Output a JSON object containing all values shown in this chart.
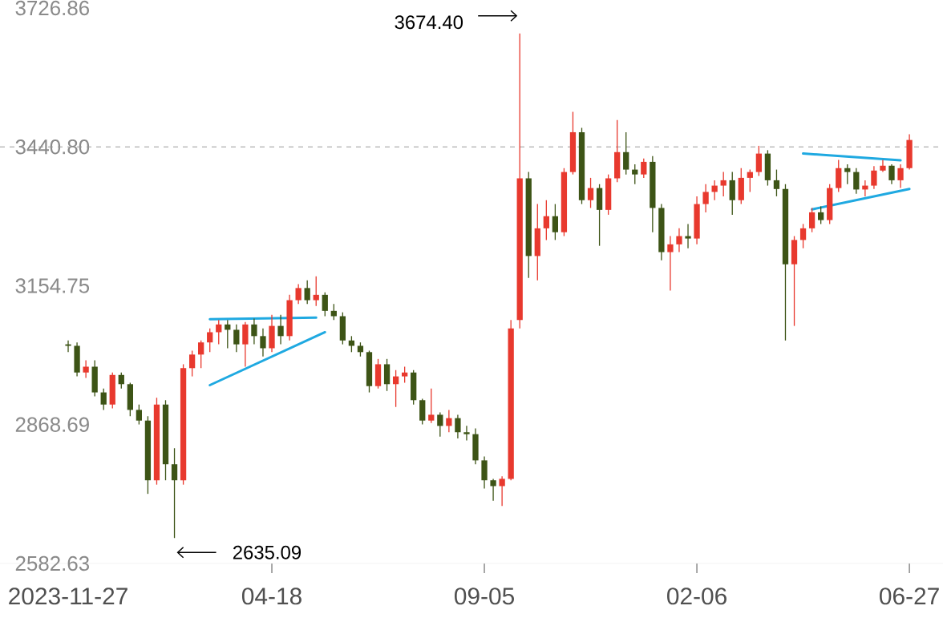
{
  "chart_data": {
    "type": "candlestick",
    "categories": [
      "2023-11-27",
      null,
      null,
      null,
      null,
      null,
      null,
      null,
      null,
      null,
      null,
      null,
      null,
      null,
      null,
      null,
      null,
      null,
      null,
      null,
      null,
      null,
      null,
      "04-18",
      null,
      null,
      null,
      null,
      null,
      null,
      null,
      null,
      null,
      null,
      null,
      null,
      null,
      null,
      null,
      null,
      null,
      null,
      null,
      null,
      null,
      null,
      null,
      "09-05",
      null,
      null,
      null,
      null,
      null,
      null,
      null,
      null,
      null,
      null,
      null,
      null,
      null,
      null,
      null,
      null,
      null,
      null,
      null,
      null,
      null,
      null,
      null,
      "02-06",
      null,
      null,
      null,
      null,
      null,
      null,
      null,
      null,
      null,
      null,
      null,
      null,
      null,
      null,
      null,
      null,
      null,
      null,
      null,
      null,
      null,
      null,
      null,
      "06-27"
    ],
    "ohlc": [
      [
        3034,
        3042,
        3018,
        3031
      ],
      [
        3031,
        3038,
        2968,
        2976
      ],
      [
        2976,
        3001,
        2965,
        2988
      ],
      [
        2988,
        3001,
        2927,
        2935
      ],
      [
        2935,
        2943,
        2899,
        2910
      ],
      [
        2910,
        2976,
        2902,
        2971
      ],
      [
        2971,
        2976,
        2943,
        2952
      ],
      [
        2952,
        2955,
        2886,
        2899
      ],
      [
        2899,
        2910,
        2869,
        2877
      ],
      [
        2877,
        2886,
        2726,
        2754
      ],
      [
        2754,
        2924,
        2745,
        2910
      ],
      [
        2910,
        2919,
        2754,
        2787
      ],
      [
        2787,
        2820,
        2635.09,
        2754
      ],
      [
        2754,
        2993,
        2745,
        2985
      ],
      [
        2985,
        3021,
        2968,
        3013
      ],
      [
        3013,
        3042,
        2985,
        3038
      ],
      [
        3038,
        3067,
        3018,
        3059
      ],
      [
        3059,
        3084,
        3034,
        3075
      ],
      [
        3075,
        3084,
        3026,
        3064
      ],
      [
        3064,
        3075,
        3018,
        3034
      ],
      [
        3034,
        3080,
        2988,
        3075
      ],
      [
        3075,
        3087,
        3034,
        3051
      ],
      [
        3051,
        3067,
        3009,
        3026
      ],
      [
        3026,
        3095,
        3018,
        3072
      ],
      [
        3072,
        3095,
        3034,
        3051
      ],
      [
        3051,
        3136,
        3042,
        3125
      ],
      [
        3125,
        3158,
        3117,
        3150
      ],
      [
        3150,
        3166,
        3117,
        3125
      ],
      [
        3125,
        3174,
        3113,
        3136
      ],
      [
        3136,
        3141,
        3092,
        3103
      ],
      [
        3103,
        3117,
        3084,
        3092
      ],
      [
        3092,
        3100,
        3034,
        3042
      ],
      [
        3042,
        3051,
        3018,
        3031
      ],
      [
        3031,
        3038,
        3009,
        3018
      ],
      [
        3018,
        3021,
        2935,
        2948
      ],
      [
        2948,
        3004,
        2943,
        2993
      ],
      [
        2993,
        3004,
        2938,
        2952
      ],
      [
        2952,
        2981,
        2905,
        2968
      ],
      [
        2968,
        2988,
        2955,
        2976
      ],
      [
        2976,
        2981,
        2910,
        2919
      ],
      [
        2919,
        2922,
        2869,
        2877
      ],
      [
        2877,
        2943,
        2872,
        2889
      ],
      [
        2889,
        2894,
        2844,
        2866
      ],
      [
        2866,
        2899,
        2853,
        2882
      ],
      [
        2882,
        2889,
        2840,
        2853
      ],
      [
        2853,
        2866,
        2836,
        2849
      ],
      [
        2849,
        2861,
        2787,
        2795
      ],
      [
        2795,
        2803,
        2737,
        2754
      ],
      [
        2754,
        2757,
        2712,
        2742
      ],
      [
        2742,
        2762,
        2701,
        2757
      ],
      [
        2757,
        3084,
        2754,
        3067
      ],
      [
        3084,
        3674.4,
        3067,
        3376
      ],
      [
        3376,
        3389,
        3171,
        3216
      ],
      [
        3216,
        3323,
        3166,
        3273
      ],
      [
        3273,
        3331,
        3249,
        3298
      ],
      [
        3298,
        3323,
        3249,
        3265
      ],
      [
        3265,
        3397,
        3257,
        3389
      ],
      [
        3389,
        3513,
        3384,
        3471
      ],
      [
        3471,
        3480,
        3323,
        3331
      ],
      [
        3331,
        3377,
        3315,
        3356
      ],
      [
        3356,
        3364,
        3237,
        3311
      ],
      [
        3311,
        3384,
        3301,
        3376
      ],
      [
        3376,
        3496,
        3368,
        3430
      ],
      [
        3430,
        3471,
        3384,
        3394
      ],
      [
        3394,
        3405,
        3364,
        3384
      ],
      [
        3384,
        3417,
        3377,
        3410
      ],
      [
        3410,
        3422,
        3265,
        3315
      ],
      [
        3315,
        3323,
        3207,
        3224
      ],
      [
        3224,
        3257,
        3145,
        3240
      ],
      [
        3240,
        3273,
        3224,
        3257
      ],
      [
        3257,
        3282,
        3232,
        3252
      ],
      [
        3252,
        3339,
        3240,
        3323
      ],
      [
        3323,
        3364,
        3306,
        3348
      ],
      [
        3348,
        3372,
        3331,
        3361
      ],
      [
        3361,
        3389,
        3339,
        3372
      ],
      [
        3372,
        3389,
        3301,
        3331
      ],
      [
        3331,
        3397,
        3323,
        3377
      ],
      [
        3377,
        3394,
        3348,
        3389
      ],
      [
        3389,
        3443,
        3381,
        3427
      ],
      [
        3427,
        3434,
        3361,
        3372
      ],
      [
        3372,
        3394,
        3339,
        3354
      ],
      [
        3354,
        3364,
        3042,
        3199
      ],
      [
        3199,
        3257,
        3072,
        3249
      ],
      [
        3249,
        3282,
        3232,
        3273
      ],
      [
        3273,
        3315,
        3265,
        3306
      ],
      [
        3306,
        3318,
        3282,
        3290
      ],
      [
        3290,
        3364,
        3282,
        3356
      ],
      [
        3356,
        3414,
        3348,
        3397
      ],
      [
        3397,
        3405,
        3364,
        3389
      ],
      [
        3389,
        3397,
        3344,
        3353
      ],
      [
        3353,
        3372,
        3339,
        3361
      ],
      [
        3361,
        3401,
        3354,
        3392
      ],
      [
        3392,
        3414,
        3389,
        3402
      ],
      [
        3402,
        3405,
        3364,
        3372
      ],
      [
        3372,
        3405,
        3356,
        3397
      ],
      [
        3397,
        3467,
        3394,
        3455
      ]
    ],
    "colors": [
      "#3d5416",
      "#3d5416",
      "#e8392e",
      "#3d5416",
      "#3d5416",
      "#e8392e",
      "#3d5416",
      "#3d5416",
      "#3d5416",
      "#3d5416",
      "#e8392e",
      "#3d5416",
      "#3d5416",
      "#e8392e",
      "#e8392e",
      "#e8392e",
      "#e8392e",
      "#e8392e",
      "#3d5416",
      "#3d5416",
      "#e8392e",
      "#3d5416",
      "#3d5416",
      "#e8392e",
      "#3d5416",
      "#e8392e",
      "#e8392e",
      "#3d5416",
      "#e8392e",
      "#3d5416",
      "#3d5416",
      "#3d5416",
      "#3d5416",
      "#3d5416",
      "#3d5416",
      "#e8392e",
      "#3d5416",
      "#e8392e",
      "#e8392e",
      "#3d5416",
      "#3d5416",
      "#e8392e",
      "#3d5416",
      "#e8392e",
      "#3d5416",
      "#3d5416",
      "#3d5416",
      "#3d5416",
      "#3d5416",
      "#e8392e",
      "#e8392e",
      "#e8392e",
      "#3d5416",
      "#e8392e",
      "#e8392e",
      "#3d5416",
      "#e8392e",
      "#e8392e",
      "#3d5416",
      "#e8392e",
      "#3d5416",
      "#e8392e",
      "#e8392e",
      "#3d5416",
      "#3d5416",
      "#e8392e",
      "#3d5416",
      "#3d5416",
      "#e8392e",
      "#e8392e",
      "#3d5416",
      "#e8392e",
      "#e8392e",
      "#e8392e",
      "#e8392e",
      "#3d5416",
      "#e8392e",
      "#e8392e",
      "#e8392e",
      "#3d5416",
      "#3d5416",
      "#3d5416",
      "#e8392e",
      "#e8392e",
      "#e8392e",
      "#3d5416",
      "#e8392e",
      "#e8392e",
      "#3d5416",
      "#3d5416",
      "#e8392e",
      "#e8392e",
      "#e8392e",
      "#3d5416",
      "#e8392e",
      "#e8392e"
    ],
    "series": [
      {
        "type": "line",
        "color": "#1fa9e1",
        "values": [
          null,
          null,
          null,
          null,
          null,
          null,
          null,
          null,
          null,
          null,
          null,
          null,
          null,
          null,
          null,
          null,
          3086,
          null,
          null,
          null,
          null,
          null,
          null,
          null,
          null,
          null,
          null,
          null,
          3089,
          null,
          null,
          null,
          null,
          null,
          null,
          null,
          null,
          null,
          null,
          null,
          null,
          null,
          null,
          null,
          null,
          null,
          null,
          null,
          null,
          null,
          null,
          null,
          null,
          null,
          null,
          null,
          null,
          null,
          null,
          null,
          null,
          null,
          null,
          null,
          null,
          null,
          null,
          null,
          null,
          null,
          null,
          null,
          null,
          null,
          null,
          null,
          null,
          null,
          null,
          null,
          null,
          null,
          null,
          null,
          null,
          null,
          null,
          null,
          null,
          null,
          null,
          null,
          null,
          null,
          null,
          null
        ]
      },
      {
        "type": "line",
        "color": "#1fa9e1",
        "values": [
          null,
          null,
          null,
          null,
          null,
          null,
          null,
          null,
          null,
          null,
          null,
          null,
          null,
          null,
          null,
          null,
          2950,
          null,
          null,
          null,
          null,
          null,
          null,
          null,
          null,
          null,
          null,
          null,
          null,
          3059,
          null,
          null,
          null,
          null,
          null,
          null,
          null,
          null,
          null,
          null,
          null,
          null,
          null,
          null,
          null,
          null,
          null,
          null,
          null,
          null,
          null,
          null,
          null,
          null,
          null,
          null,
          null,
          null,
          null,
          null,
          null,
          null,
          null,
          null,
          null,
          null,
          null,
          null,
          null,
          null,
          null,
          null,
          null,
          null,
          null,
          null,
          null,
          null,
          null,
          null,
          null,
          null,
          null,
          null,
          null,
          null,
          null,
          null,
          null,
          null,
          null,
          null,
          null,
          null,
          null,
          null
        ]
      },
      {
        "type": "line",
        "color": "#1fa9e1",
        "values": [
          null,
          null,
          null,
          null,
          null,
          null,
          null,
          null,
          null,
          null,
          null,
          null,
          null,
          null,
          null,
          null,
          null,
          null,
          null,
          null,
          null,
          null,
          null,
          null,
          null,
          null,
          null,
          null,
          null,
          null,
          null,
          null,
          null,
          null,
          null,
          null,
          null,
          null,
          null,
          null,
          null,
          null,
          null,
          null,
          null,
          null,
          null,
          null,
          null,
          null,
          null,
          null,
          null,
          null,
          null,
          null,
          null,
          null,
          null,
          null,
          null,
          null,
          null,
          null,
          null,
          null,
          null,
          null,
          null,
          null,
          null,
          null,
          null,
          null,
          null,
          null,
          null,
          null,
          null,
          null,
          null,
          null,
          null,
          3427,
          null,
          null,
          null,
          null,
          null,
          null,
          null,
          null,
          null,
          null,
          3413,
          null
        ]
      },
      {
        "type": "line",
        "color": "#1fa9e1",
        "values": [
          null,
          null,
          null,
          null,
          null,
          null,
          null,
          null,
          null,
          null,
          null,
          null,
          null,
          null,
          null,
          null,
          null,
          null,
          null,
          null,
          null,
          null,
          null,
          null,
          null,
          null,
          null,
          null,
          null,
          null,
          null,
          null,
          null,
          null,
          null,
          null,
          null,
          null,
          null,
          null,
          null,
          null,
          null,
          null,
          null,
          null,
          null,
          null,
          null,
          null,
          null,
          null,
          null,
          null,
          null,
          null,
          null,
          null,
          null,
          null,
          null,
          null,
          null,
          null,
          null,
          null,
          null,
          null,
          null,
          null,
          null,
          null,
          null,
          null,
          null,
          null,
          null,
          null,
          null,
          null,
          null,
          null,
          null,
          null,
          3312,
          null,
          null,
          null,
          null,
          null,
          null,
          null,
          null,
          null,
          null,
          3354
        ]
      }
    ],
    "ylim": [
      2582.63,
      3726.86
    ],
    "yticks": [
      2582.63,
      2868.69,
      3154.75,
      {
        "value": 3440.8,
        "label": "3440.80"
      },
      3726.86
    ],
    "ref_lines": [
      {
        "axis": "y",
        "value": 3440.8,
        "color": "#9a9a9a",
        "line_style": "dashed"
      }
    ],
    "annotations": [
      "3674.40",
      "2635.09"
    ]
  }
}
